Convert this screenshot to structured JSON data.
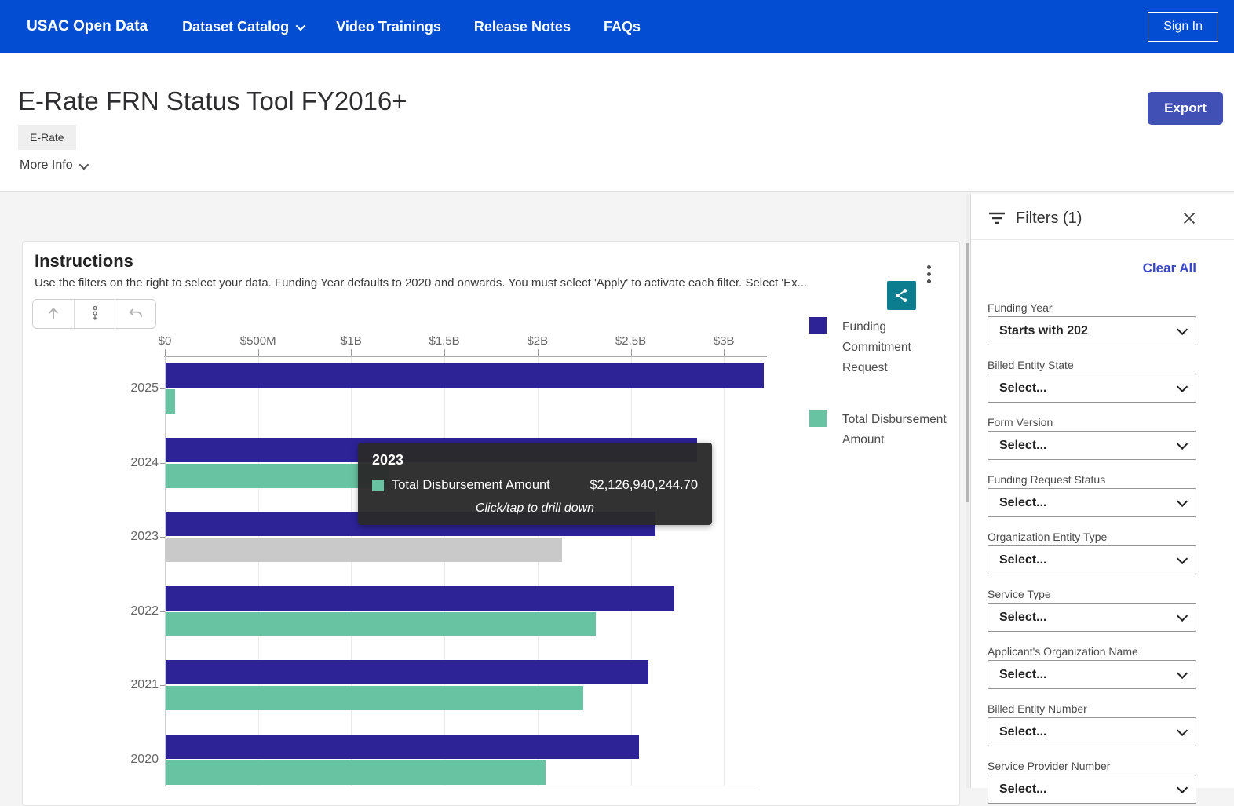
{
  "nav": {
    "brand": "USAC Open Data",
    "items": [
      {
        "label": "Dataset Catalog",
        "chevron": true
      },
      {
        "label": "Video Trainings",
        "chevron": false
      },
      {
        "label": "Release Notes",
        "chevron": false
      },
      {
        "label": "FAQs",
        "chevron": false
      }
    ],
    "sign_in": "Sign In"
  },
  "header": {
    "title": "E-Rate FRN Status Tool FY2016+",
    "tag": "E-Rate",
    "more_info": "More Info",
    "export_label": "Export"
  },
  "card": {
    "title": "Instructions",
    "description": "Use the filters on the right to select your data. Funding Year defaults to 2020 and onwards. You must select 'Apply' to activate each filter. Select 'Ex...",
    "toolbar_icons": [
      "arrow-up",
      "drill-hierarchy",
      "undo"
    ],
    "share_icon": "share-icon",
    "menu_icon": "kebab-menu-icon"
  },
  "chart_data": {
    "type": "bar",
    "orientation": "horizontal",
    "categories": [
      "2025",
      "2024",
      "2023",
      "2022",
      "2021",
      "2020"
    ],
    "series": [
      {
        "name": "Funding Commitment Request",
        "color": "#2d2296",
        "values_billions": [
          3.21,
          2.85,
          2.63,
          2.73,
          2.59,
          2.54
        ]
      },
      {
        "name": "Total Disbursement Amount",
        "color": "#67c3a1",
        "values_billions": [
          0.05,
          1.2,
          2.127,
          2.31,
          2.24,
          2.04
        ]
      }
    ],
    "x_ticks": [
      "$0",
      "$500M",
      "$1B",
      "$1.5B",
      "$2B",
      "$2.5B",
      "$3B"
    ],
    "xlim_billions": [
      0,
      3.25
    ],
    "grid": true,
    "legend_position": "right",
    "highlight": {
      "category": "2023",
      "series": "Total Disbursement Amount",
      "color": "#c9c9c9"
    },
    "note": "2024 Total Disbursement bar end is hidden behind tooltip; value estimated"
  },
  "tooltip": {
    "title": "2023",
    "series": "Total Disbursement Amount",
    "value": "$2,126,940,244.70",
    "hint": "Click/tap to drill down"
  },
  "filters": {
    "title": "Filters (1)",
    "clear_all": "Clear All",
    "fields": [
      {
        "label": "Funding Year",
        "value": "Starts with 202"
      },
      {
        "label": "Billed Entity State",
        "value": "Select..."
      },
      {
        "label": "Form Version",
        "value": "Select..."
      },
      {
        "label": "Funding Request Status",
        "value": "Select..."
      },
      {
        "label": "Organization Entity Type",
        "value": "Select..."
      },
      {
        "label": "Service Type",
        "value": "Select..."
      },
      {
        "label": "Applicant's Organization Name",
        "value": "Select..."
      },
      {
        "label": "Billed Entity Number",
        "value": "Select..."
      },
      {
        "label": "Service Provider Number",
        "value": "Select..."
      }
    ]
  },
  "colors": {
    "nav_bg": "#024dd2",
    "export_button": "#4150b5",
    "share_button": "#0c7d8e",
    "bar_primary": "#2d2296",
    "bar_secondary": "#67c3a1",
    "bar_highlight": "#c9c9c9",
    "clear_all_link": "#3a46c8"
  }
}
